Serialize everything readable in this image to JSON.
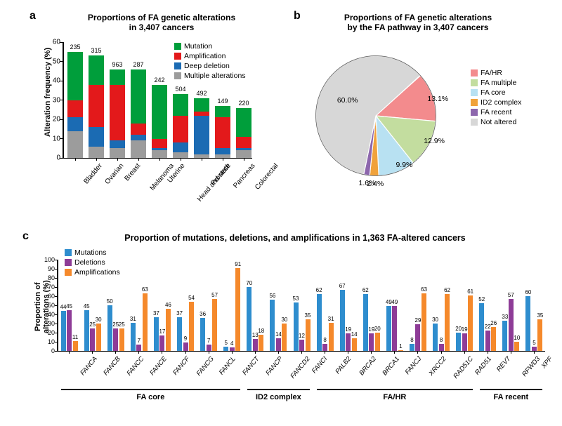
{
  "colors": {
    "mutation": "#009e3b",
    "amplification": "#e3191b",
    "deep_deletion": "#1b6bb3",
    "multiple": "#9c9c9c",
    "fa_hr": "#f38b8d",
    "fa_multiple": "#c3dd9f",
    "fa_core": "#b8e1f2",
    "id2": "#f0a23b",
    "fa_recent": "#8d67ad",
    "not_altered": "#d7d7d7",
    "mutations_c": "#2e8dce",
    "deletions_c": "#8e3c97",
    "amplifications_c": "#f5892b",
    "text": "#000000",
    "background": "#ffffff"
  },
  "panelA": {
    "label": "a",
    "title_line1": "Proportions of FA genetic alterations",
    "title_line2": "in 3,407 cancers",
    "ylabel": "Alteration frequency (%)",
    "ymax": 60,
    "ytick_step": 10,
    "legend": [
      {
        "label": "Mutation",
        "color_key": "mutation"
      },
      {
        "label": "Amplification",
        "color_key": "amplification"
      },
      {
        "label": "Deep deletion",
        "color_key": "deep_deletion"
      },
      {
        "label": "Multiple alterations",
        "color_key": "multiple"
      }
    ],
    "bars": [
      {
        "name": "Bladder",
        "n": 235,
        "segments": {
          "multiple": 14,
          "deep_deletion": 7,
          "amplification": 9,
          "mutation": 25
        },
        "total": 55
      },
      {
        "name": "Ovarian",
        "n": 315,
        "segments": {
          "multiple": 6,
          "deep_deletion": 10,
          "amplification": 22,
          "mutation": 15
        },
        "total": 53
      },
      {
        "name": "Breast",
        "n": 963,
        "segments": {
          "multiple": 5,
          "deep_deletion": 4,
          "amplification": 29,
          "mutation": 8
        },
        "total": 46
      },
      {
        "name": "Melanoma",
        "n": 287,
        "segments": {
          "multiple": 9,
          "deep_deletion": 3,
          "amplification": 6,
          "mutation": 28
        },
        "total": 46
      },
      {
        "name": "Uterine",
        "n": 242,
        "segments": {
          "multiple": 4,
          "deep_deletion": 1,
          "amplification": 5,
          "mutation": 28
        },
        "total": 38
      },
      {
        "name": "Head and neck",
        "n": 504,
        "segments": {
          "multiple": 3,
          "deep_deletion": 5,
          "amplification": 14,
          "mutation": 11
        },
        "total": 33
      },
      {
        "name": "Prostate",
        "n": 492,
        "segments": {
          "multiple": 2,
          "deep_deletion": 20,
          "amplification": 2,
          "mutation": 7
        },
        "total": 31
      },
      {
        "name": "Pancreas",
        "n": 149,
        "segments": {
          "multiple": 2,
          "deep_deletion": 3,
          "amplification": 16,
          "mutation": 6
        },
        "total": 27
      },
      {
        "name": "Colorectal",
        "n": 220,
        "segments": {
          "multiple": 4,
          "deep_deletion": 1,
          "amplification": 6,
          "mutation": 15
        },
        "total": 26
      }
    ]
  },
  "panelB": {
    "label": "b",
    "title_line1": "Proportions of FA genetic alterations",
    "title_line2": "by the FA pathway in 3,407 cancers",
    "legend": [
      {
        "label": "FA/HR",
        "color_key": "fa_hr"
      },
      {
        "label": "FA multiple",
        "color_key": "fa_multiple"
      },
      {
        "label": "FA core",
        "color_key": "fa_core"
      },
      {
        "label": "ID2 complex",
        "color_key": "id2"
      },
      {
        "label": "FA recent",
        "color_key": "fa_recent"
      },
      {
        "label": "Not altered",
        "color_key": "not_altered"
      }
    ],
    "slices": [
      {
        "label": "13.1%",
        "value": 13.1,
        "color_key": "fa_hr"
      },
      {
        "label": "12.9%",
        "value": 12.9,
        "color_key": "fa_multiple"
      },
      {
        "label": "9.9%",
        "value": 9.9,
        "color_key": "fa_core"
      },
      {
        "label": "2.4%",
        "value": 2.4,
        "color_key": "id2"
      },
      {
        "label": "1.6%",
        "value": 1.6,
        "color_key": "fa_recent"
      },
      {
        "label": "60.0%",
        "value": 60.0,
        "color_key": "not_altered"
      }
    ]
  },
  "panelC": {
    "label": "c",
    "title": "Proportion of mutations, deletions, and amplifications in 1,363 FA-altered cancers",
    "ylabel_line1": "Proportion of",
    "ylabel_line2": "alterations (%)",
    "ymax": 100,
    "ytick_step": 10,
    "legend": [
      {
        "label": "Mutations",
        "color_key": "mutations_c"
      },
      {
        "label": "Deletions",
        "color_key": "deletions_c"
      },
      {
        "label": "Amplifications",
        "color_key": "amplifications_c"
      }
    ],
    "groups": [
      {
        "name": "FA core",
        "genes": [
          "FANCA",
          "FANCB",
          "FANCC",
          "FANCE",
          "FANCF",
          "FANCG",
          "FANCL",
          "FANCT"
        ]
      },
      {
        "name": "ID2 complex",
        "genes": [
          "FANCP",
          "FANCD2",
          "FANCI"
        ]
      },
      {
        "name": "FA/HR",
        "genes": [
          "PALB2",
          "BRCA2",
          "BRCA1",
          "FANCJ",
          "XRCC2",
          "RAD51C",
          "RAD51"
        ]
      },
      {
        "name": "FA recent",
        "genes": [
          "REV7",
          "RFWD3",
          "XPF"
        ]
      }
    ],
    "genes": [
      {
        "name": "FANCA",
        "mut": 44,
        "del": 45,
        "amp": 11
      },
      {
        "name": "FANCB",
        "mut": 45,
        "del": 25,
        "amp": 30
      },
      {
        "name": "FANCC",
        "mut": 50,
        "del": 25,
        "amp": 25
      },
      {
        "name": "FANCE",
        "mut": 31,
        "del": 7,
        "amp": 63
      },
      {
        "name": "FANCF",
        "mut": 37,
        "del": 17,
        "amp": 46
      },
      {
        "name": "FANCG",
        "mut": 37,
        "del": 9,
        "amp": 54
      },
      {
        "name": "FANCL",
        "mut": 36,
        "del": 7,
        "amp": 57
      },
      {
        "name": "FANCT",
        "mut": 5,
        "del": 4,
        "amp": 91
      },
      {
        "name": "FANCP",
        "mut": 70,
        "del": 13,
        "amp": 18
      },
      {
        "name": "FANCD2",
        "mut": 56,
        "del": 14,
        "amp": 30
      },
      {
        "name": "FANCI",
        "mut": 53,
        "del": 12,
        "amp": 35
      },
      {
        "name": "PALB2",
        "mut": 62,
        "del": 8,
        "amp": 31
      },
      {
        "name": "BRCA2",
        "mut": 67,
        "del": 19,
        "amp": 14
      },
      {
        "name": "BRCA1",
        "mut": 62,
        "del": 19,
        "amp": 20
      },
      {
        "name": "FANCJ",
        "mut": 49,
        "del": 49,
        "amp": 1
      },
      {
        "name": "XRCC2",
        "mut": 8,
        "del": 29,
        "amp": 63
      },
      {
        "name": "RAD51C",
        "mut": 30,
        "del": 8,
        "amp": 62
      },
      {
        "name": "RAD51",
        "mut": 20,
        "del": 19,
        "amp": 61
      },
      {
        "name": "REV7",
        "mut": 52,
        "del": 22,
        "amp": 26
      },
      {
        "name": "RFWD3",
        "mut": 33,
        "del": 57,
        "amp": 10
      },
      {
        "name": "XPF",
        "mut": 60,
        "del": 5,
        "amp": 35
      }
    ]
  }
}
